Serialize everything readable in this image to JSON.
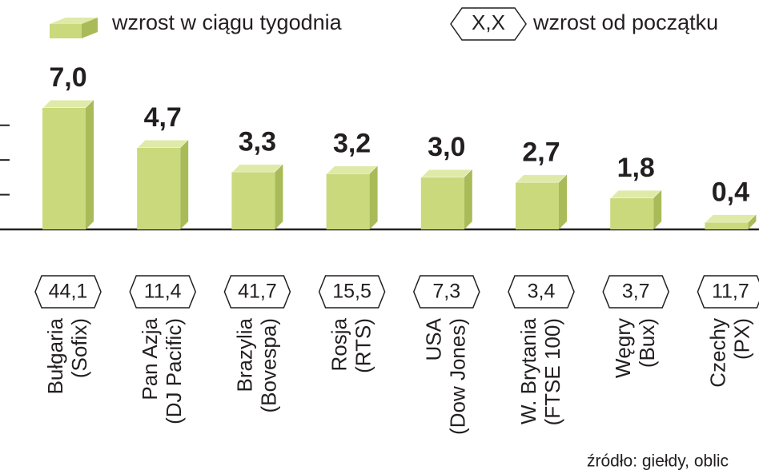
{
  "chart_data": {
    "type": "bar",
    "legend": {
      "bar_label": "wzrost w ciągu tygodnia",
      "badge_sample": "X,X",
      "badge_label": "wzrost od początku"
    },
    "categories": [
      [
        "Bułgaria",
        "(Sofix)"
      ],
      [
        "Pan Azja",
        "(DJ Pacific)"
      ],
      [
        "Brazylia",
        "(Bovespa)"
      ],
      [
        "Rosja",
        "(RTS)"
      ],
      [
        "USA",
        "(Dow Jones)"
      ],
      [
        "W. Brytania",
        "(FTSE 100)"
      ],
      [
        "Węgry",
        "(Bux)"
      ],
      [
        "Czechy",
        "(PX)"
      ]
    ],
    "series": [
      {
        "name": "wzrost w ciągu tygodnia",
        "color": "#c9d97c",
        "values": [
          7.0,
          4.7,
          3.3,
          3.2,
          3.0,
          2.7,
          1.8,
          0.4
        ],
        "value_labels": [
          "7,0",
          "4,7",
          "3,3",
          "3,2",
          "3,0",
          "2,7",
          "1,8",
          "0,4"
        ]
      },
      {
        "name": "wzrost od początku",
        "values": [
          44.1,
          11.4,
          41.7,
          15.5,
          7.3,
          3.4,
          3.7,
          11.7
        ],
        "value_labels": [
          "44,1",
          "11,4",
          "41,7",
          "15,5",
          "7,3",
          "3,4",
          "3,7",
          "11,7"
        ]
      }
    ],
    "ylim": [
      0,
      7
    ],
    "yticks": [
      0,
      2,
      4,
      6
    ],
    "source": "źródło: giełdy, oblic"
  }
}
